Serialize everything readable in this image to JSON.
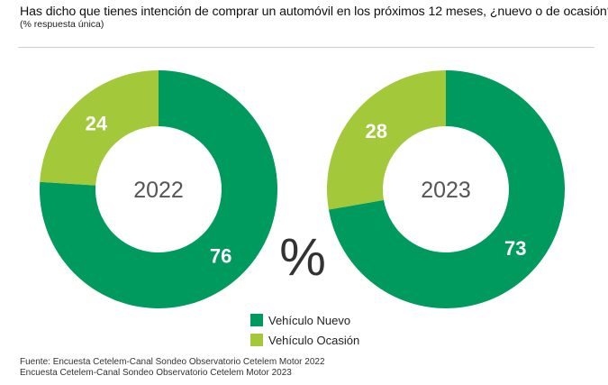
{
  "header": {
    "title": "Has dicho que tienes intención de comprar un automóvil en los próximos 12 meses, ¿nuevo o de ocasión?",
    "subtitle": "(% respuesta única)"
  },
  "center_symbol": "%",
  "colors": {
    "nuevo": "#009a5e",
    "ocasion": "#a3c93a",
    "year_text": "#555555"
  },
  "legend": {
    "items": [
      {
        "label": "Vehículo Nuevo",
        "color": "#009a5e"
      },
      {
        "label": "Vehículo Ocasión",
        "color": "#a3c93a"
      }
    ]
  },
  "source": {
    "line1": "Fuente: Encuesta Cetelem-Canal Sondeo Observatorio Cetelem Motor 2022",
    "line2": "Encuesta Cetelem-Canal Sondeo Observatorio Cetelem Motor 2023"
  },
  "chart_data": [
    {
      "type": "pie",
      "center_label": "2022",
      "unit": "%",
      "slices": [
        {
          "label": "Vehículo Nuevo",
          "value": 76
        },
        {
          "label": "Vehículo Ocasión",
          "value": 24
        }
      ]
    },
    {
      "type": "pie",
      "center_label": "2023",
      "unit": "%",
      "slices": [
        {
          "label": "Vehículo Nuevo",
          "value": 73
        },
        {
          "label": "Vehículo Ocasión",
          "value": 28
        }
      ]
    }
  ]
}
